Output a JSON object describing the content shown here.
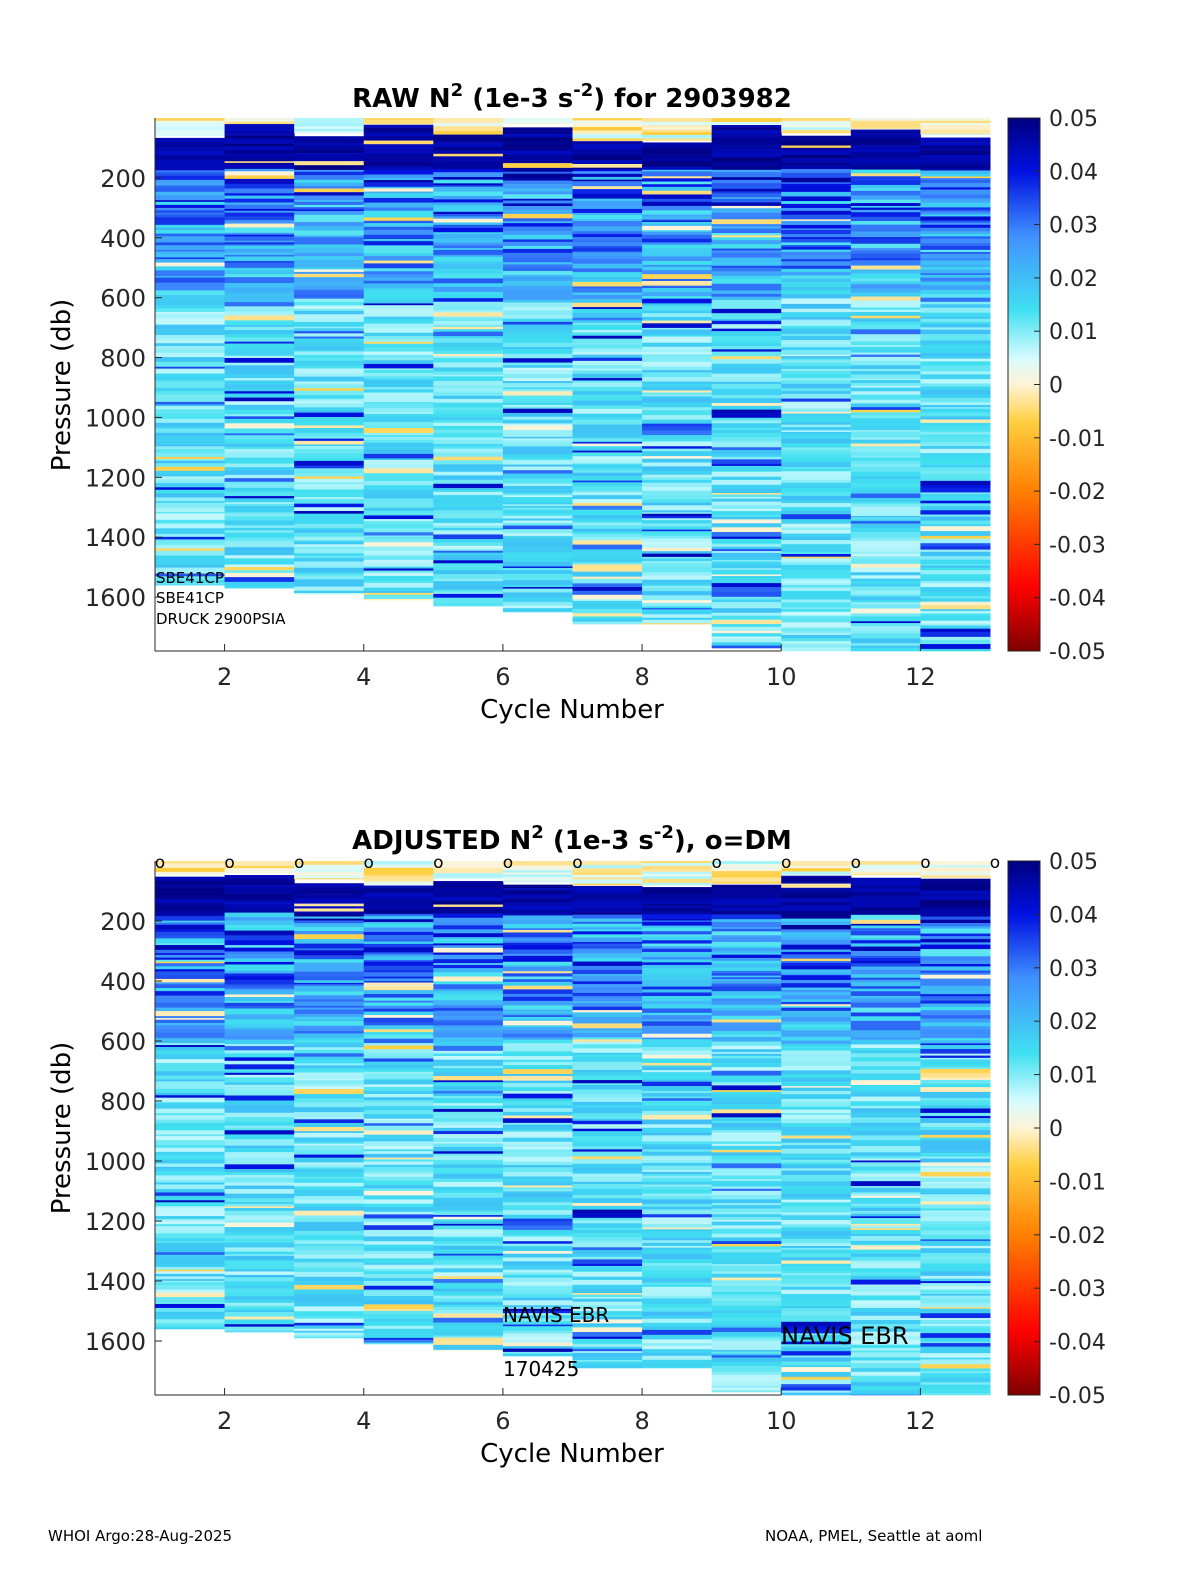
{
  "chart_data": [
    {
      "type": "heatmap",
      "title": {
        "prefix": "RAW N",
        "sup1": "2",
        "mid": " (1e-3 s",
        "sup2": "-2",
        "suffix": ") for 2903982"
      },
      "xlabel": "Cycle Number",
      "ylabel": "Pressure (db)",
      "xlim": [
        1,
        13
      ],
      "ylim": [
        1780,
        0
      ],
      "xticks": [
        2,
        4,
        6,
        8,
        10,
        12
      ],
      "yticks": [
        200,
        400,
        600,
        800,
        1000,
        1200,
        1400,
        1600
      ],
      "clim": [
        -0.05,
        0.05
      ],
      "colorbar_ticks": [
        "0.05",
        "0.04",
        "0.03",
        "0.02",
        "0.01",
        "0",
        "-0.01",
        "-0.02",
        "-0.03",
        "-0.04",
        "-0.05"
      ],
      "columns": [
        {
          "cycle": 1,
          "top_db": 40,
          "bottom_db": 1560,
          "top_band_db": 60
        },
        {
          "cycle": 2,
          "top_db": 40,
          "bottom_db": 1570,
          "top_band_db": 20
        },
        {
          "cycle": 3,
          "top_db": 45,
          "bottom_db": 1590,
          "top_band_db": 50
        },
        {
          "cycle": 4,
          "top_db": 80,
          "bottom_db": 1610,
          "top_band_db": 20
        },
        {
          "cycle": 5,
          "top_db": 40,
          "bottom_db": 1630,
          "top_band_db": 55
        },
        {
          "cycle": 6,
          "top_db": 70,
          "bottom_db": 1650,
          "top_band_db": 20
        },
        {
          "cycle": 7,
          "top_db": 40,
          "bottom_db": 1690,
          "top_band_db": 75
        },
        {
          "cycle": 8,
          "top_db": 40,
          "bottom_db": 1690,
          "top_band_db": 75
        },
        {
          "cycle": 9,
          "top_db": 70,
          "bottom_db": 1770,
          "top_band_db": 20
        },
        {
          "cycle": 10,
          "top_db": 40,
          "bottom_db": 1780,
          "top_band_db": 50
        },
        {
          "cycle": 11,
          "top_db": 40,
          "bottom_db": 1780,
          "top_band_db": 35
        },
        {
          "cycle": 12,
          "top_db": 40,
          "bottom_db": 1780,
          "top_band_db": 55
        }
      ],
      "annotations": [
        "SBE41CP",
        "SBE41CP",
        "DRUCK 2900PSIA"
      ]
    },
    {
      "type": "heatmap",
      "title": {
        "prefix": "ADJUSTED N",
        "sup1": "2",
        "mid": " (1e-3 s",
        "sup2": "-2",
        "suffix": "), o=DM"
      },
      "xlabel": "Cycle Number",
      "ylabel": "Pressure (db)",
      "xlim": [
        1,
        13
      ],
      "ylim": [
        1780,
        0
      ],
      "xticks": [
        2,
        4,
        6,
        8,
        10,
        12
      ],
      "yticks": [
        200,
        400,
        600,
        800,
        1000,
        1200,
        1400,
        1600
      ],
      "clim": [
        -0.05,
        0.05
      ],
      "colorbar_ticks": [
        "0.05",
        "0.04",
        "0.03",
        "0.02",
        "0.01",
        "0",
        "-0.01",
        "-0.02",
        "-0.03",
        "-0.04",
        "-0.05"
      ],
      "columns": [
        {
          "cycle": 1,
          "top_db": 40,
          "bottom_db": 1560,
          "top_band_db": 45
        },
        {
          "cycle": 2,
          "top_db": 40,
          "bottom_db": 1570,
          "top_band_db": 40
        },
        {
          "cycle": 3,
          "top_db": 40,
          "bottom_db": 1590,
          "top_band_db": 60
        },
        {
          "cycle": 4,
          "top_db": 40,
          "bottom_db": 1610,
          "top_band_db": 80
        },
        {
          "cycle": 5,
          "top_db": 40,
          "bottom_db": 1630,
          "top_band_db": 60
        },
        {
          "cycle": 6,
          "top_db": 40,
          "bottom_db": 1650,
          "top_band_db": 70
        },
        {
          "cycle": 7,
          "top_db": 40,
          "bottom_db": 1690,
          "top_band_db": 80
        },
        {
          "cycle": 8,
          "top_db": 40,
          "bottom_db": 1690,
          "top_band_db": 80
        },
        {
          "cycle": 9,
          "top_db": 40,
          "bottom_db": 1770,
          "top_band_db": 75
        },
        {
          "cycle": 10,
          "top_db": 40,
          "bottom_db": 1780,
          "top_band_db": 45
        },
        {
          "cycle": 11,
          "top_db": 40,
          "bottom_db": 1780,
          "top_band_db": 45
        },
        {
          "cycle": 12,
          "top_db": 40,
          "bottom_db": 1780,
          "top_band_db": 55
        }
      ],
      "dm_markers": {
        "symbol": "o",
        "cycles": [
          1,
          2,
          3,
          4,
          5,
          6,
          7,
          9,
          10,
          11,
          12,
          13
        ]
      },
      "annotations": [
        "NAVIS EBR",
        "170425",
        "NAVIS EBR"
      ]
    }
  ],
  "footer": {
    "left": "WHOI Argo:28-Aug-2025",
    "right": "NOAA, PMEL, Seattle at aoml"
  }
}
